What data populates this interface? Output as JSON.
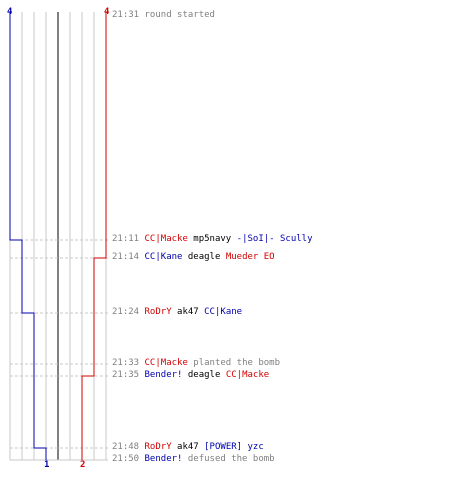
{
  "colors": {
    "team_t": "#d00000",
    "team_ct": "#0000b0",
    "grid": "#c8c8c8",
    "center_line": "#808080",
    "time_text": "#808080",
    "weapon_text": "#000000",
    "background": "#ffffff"
  },
  "counts": {
    "ct_start": "4",
    "t_start": "4",
    "ct_end": "1",
    "t_end": "2"
  },
  "events": [
    {
      "time": "21:31",
      "parts": [
        {
          "text": "round started",
          "role": "note"
        }
      ]
    },
    {
      "time": "21:11",
      "parts": [
        {
          "text": "CC|Macke",
          "role": "t"
        },
        {
          "text": "mp5navy",
          "role": "weapon"
        },
        {
          "text": "-|SoI|- Scully",
          "role": "ct"
        }
      ]
    },
    {
      "time": "21:14",
      "parts": [
        {
          "text": "CC|Kane",
          "role": "ct"
        },
        {
          "text": "deagle",
          "role": "weapon"
        },
        {
          "text": "Mueder EO",
          "role": "t"
        }
      ]
    },
    {
      "time": "21:24",
      "parts": [
        {
          "text": "RoDrY",
          "role": "t"
        },
        {
          "text": "ak47",
          "role": "weapon"
        },
        {
          "text": "CC|Kane",
          "role": "ct"
        }
      ]
    },
    {
      "time": "21:33",
      "parts": [
        {
          "text": "CC|Macke",
          "role": "t"
        },
        {
          "text": "planted the bomb",
          "role": "note"
        }
      ]
    },
    {
      "time": "21:35",
      "parts": [
        {
          "text": "Bender!",
          "role": "ct"
        },
        {
          "text": "deagle",
          "role": "weapon"
        },
        {
          "text": "CC|Macke",
          "role": "t"
        }
      ]
    },
    {
      "time": "21:48",
      "parts": [
        {
          "text": "RoDrY",
          "role": "t"
        },
        {
          "text": "ak47",
          "role": "weapon"
        },
        {
          "text": "[POWER] yzc",
          "role": "ct"
        }
      ]
    },
    {
      "time": "21:50",
      "parts": [
        {
          "text": "Bender!",
          "role": "ct"
        },
        {
          "text": "defused the bomb",
          "role": "note"
        }
      ]
    }
  ]
}
